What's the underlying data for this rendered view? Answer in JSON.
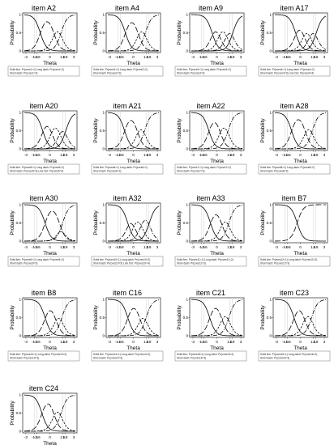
{
  "chart_data": [
    {
      "type": "line",
      "title": "item A2",
      "xlabel": "Theta",
      "ylabel": "Probability",
      "x_ticks": [
        "-3",
        "-1.9",
        "-1.6",
        "0",
        "1.6",
        "1.9",
        "3"
      ],
      "y_ticks": [
        "0",
        "0.5",
        "1"
      ],
      "b": [
        -1.2,
        0.5,
        1.4
      ],
      "legend": [
        "Solid line: Pr(cves1=1)   Long dash: Pr(cves1=2)",
        "Short dash: Pr(cves1=3)"
      ]
    },
    {
      "type": "line",
      "title": "item A4",
      "xlabel": "Theta",
      "ylabel": "Probability",
      "x_ticks": [
        "-3",
        "-1.9",
        "-1.6",
        "0",
        "1.6",
        "1.9",
        "3"
      ],
      "y_ticks": [
        "0",
        "0.5",
        "1"
      ],
      "b": [
        -1.0,
        0.6,
        1.5
      ],
      "legend": [
        "Solid line: Pr(cves2=1)   Long dash: Pr(cves2=2)",
        "Short dash: Pr(cves2=3)"
      ]
    },
    {
      "type": "line",
      "title": "item A9",
      "xlabel": "Theta",
      "ylabel": "Probability",
      "x_ticks": [
        "-3",
        "-1.9",
        "-1.6",
        "0",
        "1.6",
        "1.9",
        "3"
      ],
      "y_ticks": [
        "0",
        "0.5",
        "1"
      ],
      "b": [
        -0.6,
        0.3,
        1.2,
        2.0
      ],
      "legend": [
        "Solid line: Pr(cves3=1)   Long dash: Pr(cves3=2)",
        "Short dash: Pr(cves3=3)"
      ]
    },
    {
      "type": "line",
      "title": "item A17",
      "xlabel": "Theta",
      "ylabel": "Probability",
      "x_ticks": [
        "-3",
        "-1.9",
        "-1.6",
        "0",
        "1.6",
        "1.9",
        "3"
      ],
      "y_ticks": [
        "0",
        "0.5",
        "1"
      ],
      "b": [
        -0.6,
        0.4,
        1.2,
        2.0
      ],
      "legend": [
        "Solid line: Pr(cves4=1)   Long dash: Pr(cves4=2)",
        "Short dash: Pr(cves4=3)   Line Dot: Pr(cves4=4)"
      ]
    },
    {
      "type": "line",
      "title": "item A20",
      "xlabel": "Theta",
      "ylabel": "Probability",
      "x_ticks": [
        "-3",
        "-1.9",
        "-1.6",
        "0",
        "1.6",
        "1.9",
        "3"
      ],
      "y_ticks": [
        "0",
        "0.5",
        "1"
      ],
      "b": [
        -0.9,
        0.2,
        1.2,
        2.0
      ],
      "legend": [
        "Solid line: Pr(cves5=1)   Long dash: Pr(cves5=2)",
        "Short dash: Pr(cves5=3)   Line Dot: Pr(cves5=4)"
      ]
    },
    {
      "type": "line",
      "title": "item A21",
      "xlabel": "Theta",
      "ylabel": "Probability",
      "x_ticks": [
        "-3",
        "-1.9",
        "-1.6",
        "0",
        "1.6",
        "1.9",
        "3"
      ],
      "y_ticks": [
        "0",
        "0.5",
        "1"
      ],
      "b": [
        -1.1,
        0.5,
        1.4
      ],
      "legend": [
        "Solid line: Pr(cves6=1)   Long dash: Pr(cves6=2)",
        "Short dash: Pr(cves6=3)"
      ]
    },
    {
      "type": "line",
      "title": "item A22",
      "xlabel": "Theta",
      "ylabel": "Probability",
      "x_ticks": [
        "-3",
        "-1.9",
        "-1.6",
        "0",
        "1.6",
        "1.9",
        "3"
      ],
      "y_ticks": [
        "0",
        "0.5",
        "1"
      ],
      "b": [
        -1.0,
        0.4,
        1.4
      ],
      "legend": [
        "Solid line: Pr(cves7=1)   Long dash: Pr(cves7=2)",
        "Short dash: Pr(cves7=3)"
      ]
    },
    {
      "type": "line",
      "title": "item A28",
      "xlabel": "Theta",
      "ylabel": "Probability",
      "x_ticks": [
        "-3",
        "-1.9",
        "-1.6",
        "0",
        "1.6",
        "1.9",
        "3"
      ],
      "y_ticks": [
        "0",
        "0.5",
        "1"
      ],
      "b": [
        -1.1,
        0.6,
        1.5
      ],
      "legend": [
        "Solid line: Pr(cves8=1)   Long dash: Pr(cves8=2)",
        "Short dash: Pr(cves8=3)"
      ]
    },
    {
      "type": "line",
      "title": "item A30",
      "xlabel": "Theta",
      "ylabel": "Probability",
      "x_ticks": [
        "-3",
        "-1.9",
        "-1.6",
        "0",
        "1.6",
        "1.9",
        "3"
      ],
      "y_ticks": [
        "0",
        "0.5",
        "1"
      ],
      "b": [
        -0.6,
        1.2,
        1.6
      ],
      "legend": [
        "Solid line: Pr(cves9=1)   Long dash: Pr(cves9=2)",
        "Short dash: Pr(cves9=3)"
      ]
    },
    {
      "type": "line",
      "title": "item A32",
      "xlabel": "Theta",
      "ylabel": "Probability",
      "x_ticks": [
        "-3",
        "-1.9",
        "-1.6",
        "0",
        "1.6",
        "1.9",
        "3"
      ],
      "y_ticks": [
        "0",
        "0.5",
        "1"
      ],
      "b": [
        -0.7,
        0.1,
        1.0,
        2.0
      ],
      "legend": [
        "Solid line: Pr(cves10=1)   Long dash: Pr(cves10=2)",
        "Short dash: Pr(cves10=3)   Line Dot: Pr(cves10=4)"
      ]
    },
    {
      "type": "line",
      "title": "item A33",
      "xlabel": "Theta",
      "ylabel": "Probability",
      "x_ticks": [
        "-3",
        "-1.9",
        "-1.6",
        "0",
        "1.6",
        "1.9",
        "3"
      ],
      "y_ticks": [
        "0",
        "0.5",
        "1"
      ],
      "b": [
        -0.8,
        0.6,
        1.5
      ],
      "legend": [
        "Solid line: Pr(cves11=1)   Long dash: Pr(cves11=2)",
        "Short dash: Pr(cves11=3)"
      ]
    },
    {
      "type": "line",
      "title": "item B7",
      "xlabel": "Theta",
      "ylabel": "Probability",
      "x_ticks": [
        "-3",
        "-1.9",
        "-1.6",
        "0",
        "1.6",
        "1.9",
        "3"
      ],
      "y_ticks": [
        "0",
        "0.5",
        "1"
      ],
      "b": [
        -0.4
      ],
      "legend": [
        "Solid line: Pr(cves12=1)   Long dash: Pr(cves12=2)",
        "Short dash: Pr(cves12=3)"
      ]
    },
    {
      "type": "line",
      "title": "item B8",
      "xlabel": "Theta",
      "ylabel": "Probability",
      "x_ticks": [
        "-3",
        "-1.9",
        "-1.6",
        "0",
        "1.6",
        "1.9",
        "3"
      ],
      "y_ticks": [
        "0",
        "0.5",
        "1"
      ],
      "b": [
        -0.6,
        0.7,
        1.5
      ],
      "legend": [
        "Solid line: Pr(cves13=1)   Long dash: Pr(cves13=2)",
        "Short dash: Pr(cves13=3)"
      ]
    },
    {
      "type": "line",
      "title": "item C16",
      "xlabel": "Theta",
      "ylabel": "Probability",
      "x_ticks": [
        "-3",
        "-1.9",
        "-1.6",
        "0",
        "1.6",
        "1.9",
        "3"
      ],
      "y_ticks": [
        "0",
        "0.5",
        "1"
      ],
      "b": [
        -0.7,
        0.8,
        1.6
      ],
      "legend": [
        "Solid line: Pr(cves14=1)   Long dash: Pr(cves14=2)",
        "Short dash: Pr(cves14=3)"
      ]
    },
    {
      "type": "line",
      "title": "item C21",
      "xlabel": "Theta",
      "ylabel": "Probability",
      "x_ticks": [
        "-3",
        "-1.9",
        "-1.6",
        "0",
        "1.6",
        "1.9",
        "3"
      ],
      "y_ticks": [
        "0",
        "0.5",
        "1"
      ],
      "b": [
        -0.9,
        0.6,
        1.5
      ],
      "legend": [
        "Solid line: Pr(cves15=1)   Long dash: Pr(cves15=2)",
        "Short dash: Pr(cves15=3)"
      ]
    },
    {
      "type": "line",
      "title": "item C23",
      "xlabel": "Theta",
      "ylabel": "Probability",
      "x_ticks": [
        "-3",
        "-1.9",
        "-1.6",
        "0",
        "1.6",
        "1.9",
        "3"
      ],
      "y_ticks": [
        "0",
        "0.5",
        "1"
      ],
      "b": [
        -0.8,
        0.5,
        1.4
      ],
      "legend": [
        "Solid line: Pr(cves16=1)   Long dash: Pr(cves16=2)",
        "Short dash: Pr(cves16=3)"
      ]
    },
    {
      "type": "line",
      "title": "item C24",
      "xlabel": "Theta",
      "ylabel": "Probability",
      "x_ticks": [
        "-3",
        "-1.9",
        "-1.6",
        "0",
        "1.6",
        "1.9",
        "3"
      ],
      "y_ticks": [
        "0",
        "0.5",
        "1"
      ],
      "b": [
        -1.0,
        0.5,
        1.4
      ],
      "legend": [
        "Solid line: Pr(cves17=1)   Long dash: Pr(cves17=2)",
        "Short dash: Pr(cves17=3)"
      ]
    }
  ]
}
